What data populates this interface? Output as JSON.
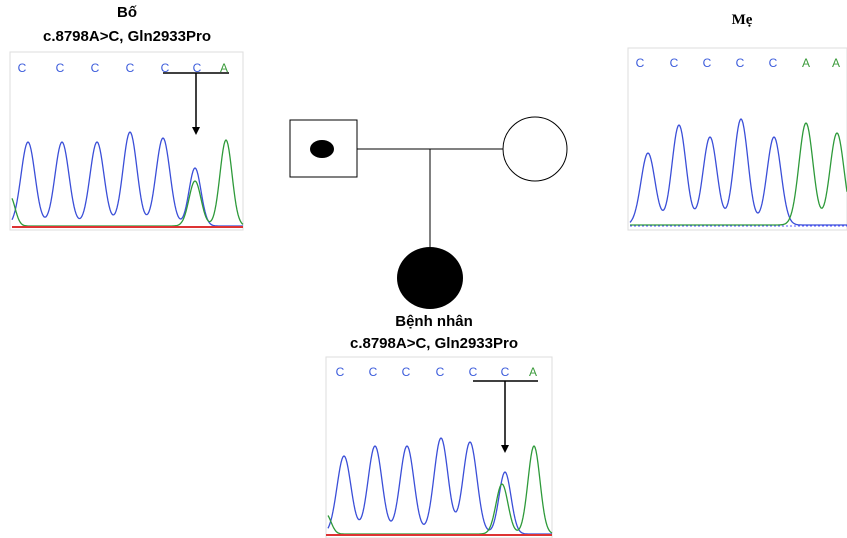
{
  "base_colors": {
    "C": "#3b5bdb",
    "A": "#3a9a3a"
  },
  "father": {
    "label": "Bố",
    "mutation": "c.8798A>C, Gln2933Pro",
    "bases": [
      "C",
      "C",
      "C",
      "C",
      "C",
      "C",
      "A"
    ]
  },
  "mother": {
    "label": "Mẹ",
    "bases": [
      "C",
      "C",
      "C",
      "C",
      "C",
      "A",
      "A"
    ]
  },
  "patient": {
    "label": "Bệnh nhân",
    "mutation": "c.8798A>C, Gln2933Pro",
    "bases": [
      "C",
      "C",
      "C",
      "C",
      "C",
      "C",
      "A"
    ]
  }
}
